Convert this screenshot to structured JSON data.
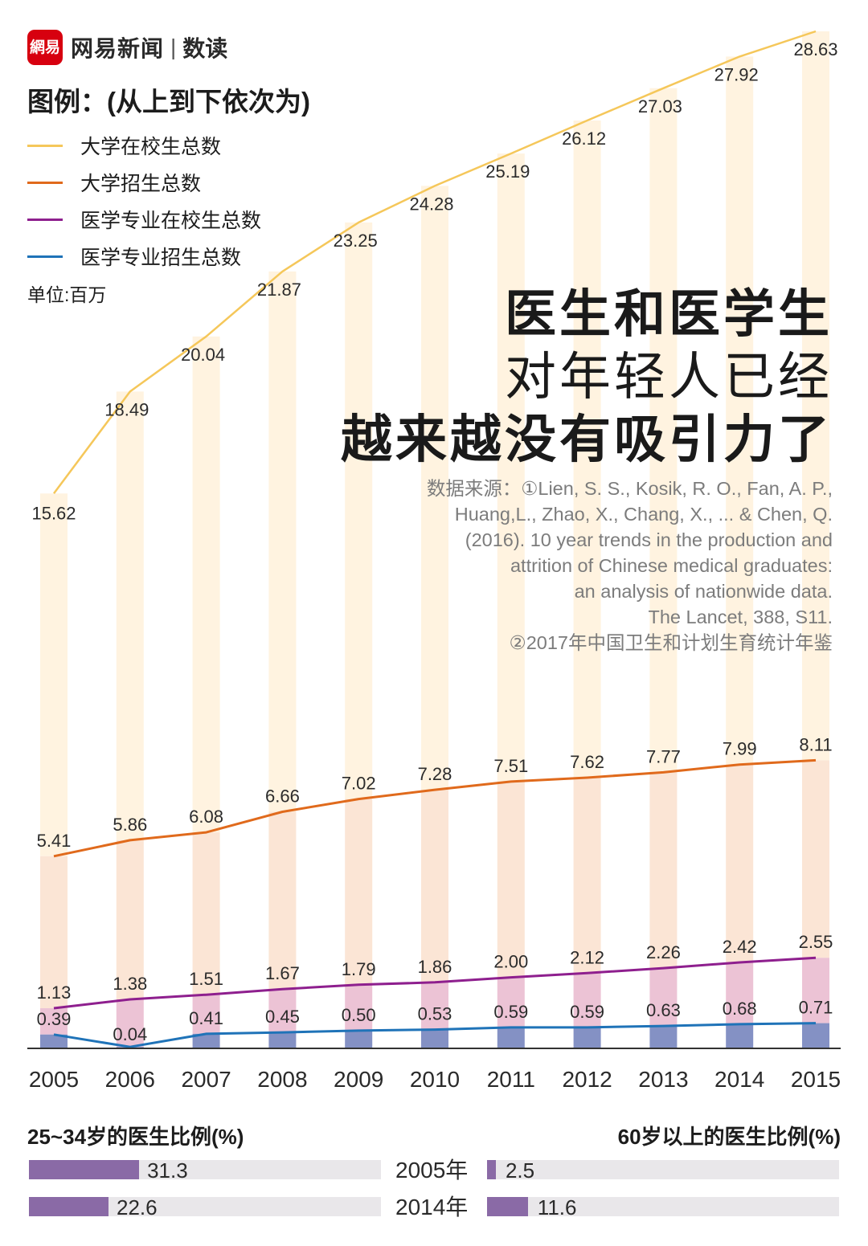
{
  "brand": {
    "logo": "網易",
    "name": "网易新闻",
    "sub": "数读"
  },
  "legend": {
    "title": "图例：(从上到下依次为)",
    "items": [
      {
        "label": "大学在校生总数",
        "color": "#f5c75a"
      },
      {
        "label": "大学招生总数",
        "color": "#e06a1c"
      },
      {
        "label": "医学专业在校生总数",
        "color": "#8e1f8e"
      },
      {
        "label": "医学专业招生总数",
        "color": "#1f73b8"
      }
    ],
    "unit": "单位:百万"
  },
  "headline": {
    "line1": "医生和医学生",
    "line2": "对年轻人已经",
    "line3": "越来越没有吸引力了"
  },
  "source": {
    "lines": [
      "数据来源：①Lien, S. S., Kosik, R. O., Fan, A. P.,",
      "Huang,L., Zhao, X., Chang, X., ... & Chen, Q.",
      "(2016). 10 year trends in the production and",
      "attrition of Chinese medical graduates:",
      "an analysis of nationwide data.",
      "The Lancet, 388, S11.",
      "②2017年中国卫生和计划生育统计年鉴"
    ]
  },
  "chart_data": {
    "type": "line",
    "x": [
      "2005",
      "2006",
      "2007",
      "2008",
      "2009",
      "2010",
      "2011",
      "2012",
      "2013",
      "2014",
      "2015"
    ],
    "series": [
      {
        "name": "大学在校生总数",
        "color": "#f5c75a",
        "values": [
          15.62,
          18.49,
          20.04,
          21.87,
          23.25,
          24.28,
          25.19,
          26.12,
          27.03,
          27.92,
          28.63
        ],
        "labels": [
          "15.62",
          "18.49",
          "20.04",
          "21.87",
          "23.25",
          "24.28",
          "25.19",
          "26.12",
          "27.03",
          "27.92",
          "28.63"
        ]
      },
      {
        "name": "大学招生总数",
        "color": "#e06a1c",
        "values": [
          5.41,
          5.86,
          6.08,
          6.66,
          7.02,
          7.28,
          7.51,
          7.62,
          7.77,
          7.99,
          8.11
        ],
        "labels": [
          "5.41",
          "5.86",
          "6.08",
          "6.66",
          "7.02",
          "7.28",
          "7.51",
          "7.62",
          "7.77",
          "7.99",
          "8.11"
        ]
      },
      {
        "name": "医学专业在校生总数",
        "color": "#8e1f8e",
        "values": [
          1.13,
          1.38,
          1.51,
          1.67,
          1.79,
          1.86,
          2.0,
          2.12,
          2.26,
          2.42,
          2.55
        ],
        "labels": [
          "1.13",
          "1.38",
          "1.51",
          "1.67",
          "1.79",
          "1.86",
          "2.00",
          "2.12",
          "2.26",
          "2.42",
          "2.55"
        ]
      },
      {
        "name": "医学专业招生总数",
        "color": "#1f73b8",
        "values": [
          0.39,
          0.04,
          0.41,
          0.45,
          0.5,
          0.53,
          0.59,
          0.59,
          0.63,
          0.68,
          0.71
        ],
        "labels": [
          "0.39",
          "0.04",
          "0.41",
          "0.45",
          "0.50",
          "0.53",
          "0.59",
          "0.59",
          "0.63",
          "0.68",
          "0.71"
        ]
      }
    ],
    "ylim": [
      0,
      28.63
    ],
    "grid": false
  },
  "doctor_ratio": {
    "left_title": "25~34岁的医生比例(%)",
    "right_title": "60岁以上的医生比例(%)",
    "rows": [
      {
        "year": "2005年",
        "young": 31.3,
        "young_label": "31.3",
        "old": 2.5,
        "old_label": "2.5"
      },
      {
        "year": "2014年",
        "young": 22.6,
        "young_label": "22.6",
        "old": 11.6,
        "old_label": "11.6"
      }
    ]
  }
}
